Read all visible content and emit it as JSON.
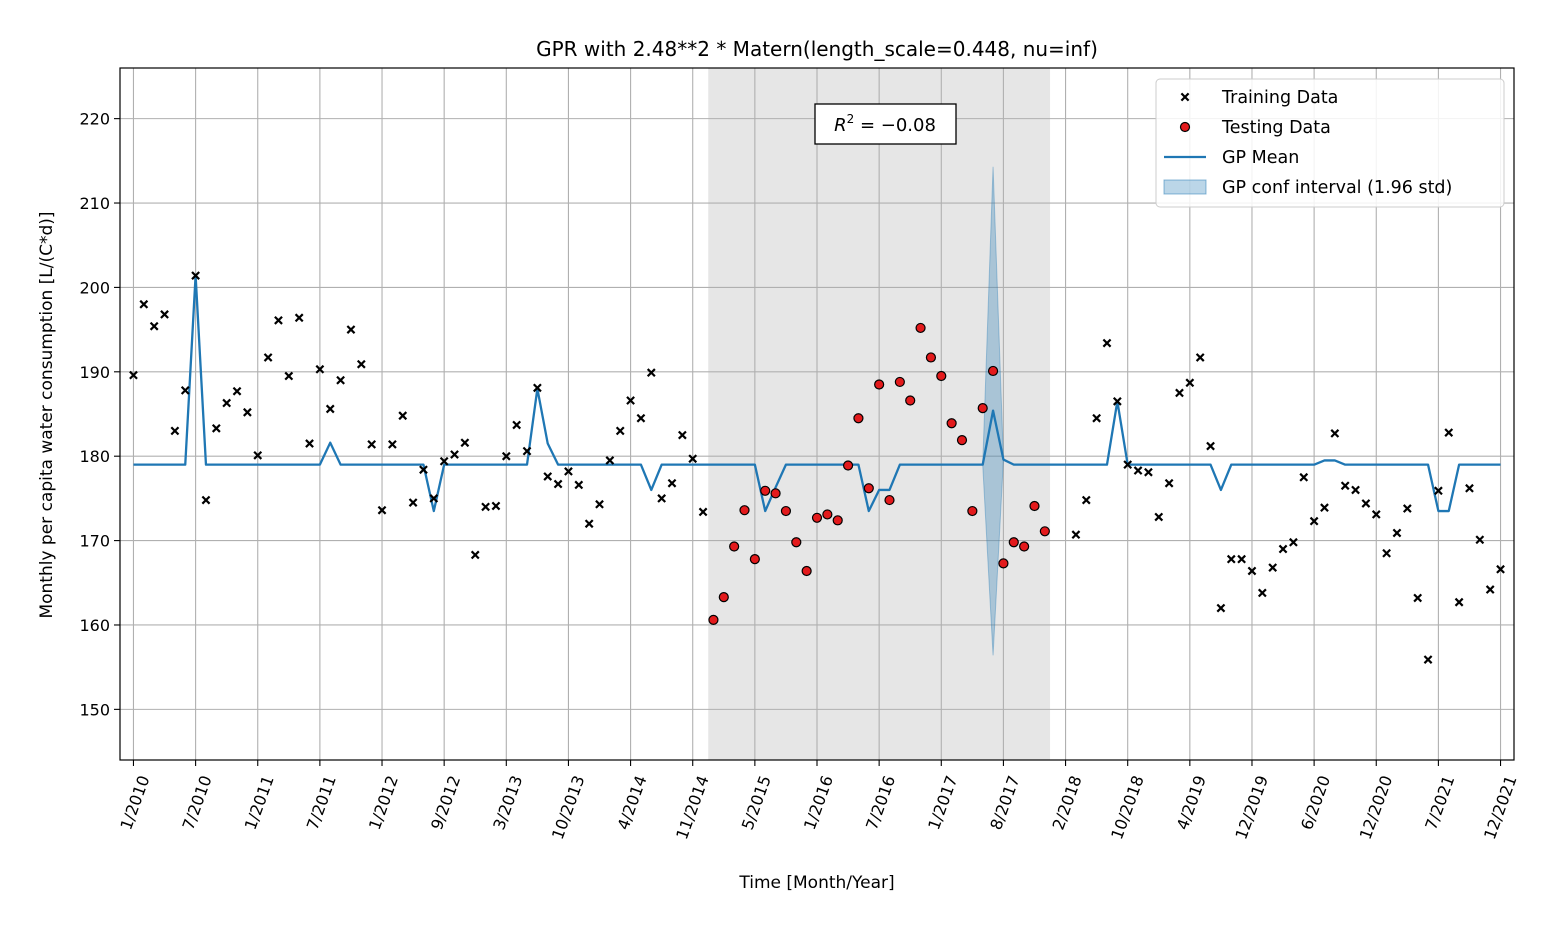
{
  "chart_data": {
    "type": "scatter",
    "title": "GPR with 2.48**2 * Matern(length_scale=0.448, nu=inf)",
    "xlabel": "Time [Month/Year]",
    "ylabel": "Monthly per capita water consumption [L/(C*d)]",
    "ylim": [
      144,
      226
    ],
    "xlim": [
      -1.3,
      133.3
    ],
    "grid": true,
    "legend_position": "top-right",
    "annotation": {
      "text_prefix": "R",
      "superscript": "2",
      "text_suffix": " = −0.08"
    },
    "x_ticks": [
      {
        "x": 0,
        "label": "1/2010"
      },
      {
        "x": 6,
        "label": "7/2010"
      },
      {
        "x": 12,
        "label": "1/2011"
      },
      {
        "x": 18,
        "label": "7/2011"
      },
      {
        "x": 24,
        "label": "1/2012"
      },
      {
        "x": 30,
        "label": "9/2012"
      },
      {
        "x": 36,
        "label": "3/2013"
      },
      {
        "x": 42,
        "label": "10/2013"
      },
      {
        "x": 48,
        "label": "4/2014"
      },
      {
        "x": 54,
        "label": "11/2014"
      },
      {
        "x": 60,
        "label": "5/2015"
      },
      {
        "x": 66,
        "label": "1/2016"
      },
      {
        "x": 72,
        "label": "7/2016"
      },
      {
        "x": 78,
        "label": "1/2017"
      },
      {
        "x": 84,
        "label": "8/2017"
      },
      {
        "x": 90,
        "label": "2/2018"
      },
      {
        "x": 96,
        "label": "10/2018"
      },
      {
        "x": 102,
        "label": "4/2019"
      },
      {
        "x": 108,
        "label": "12/2019"
      },
      {
        "x": 114,
        "label": "6/2020"
      },
      {
        "x": 120,
        "label": "12/2020"
      },
      {
        "x": 126,
        "label": "7/2021"
      },
      {
        "x": 132,
        "label": "12/2021"
      }
    ],
    "y_ticks": [
      150,
      160,
      170,
      180,
      190,
      200,
      210,
      220
    ],
    "test_region": [
      56,
      88
    ],
    "series": [
      {
        "name": "Training Data",
        "kind": "scatter",
        "marker": "x",
        "color": "#000000",
        "points": [
          [
            0,
            189.6
          ],
          [
            1,
            198
          ],
          [
            2,
            195.4
          ],
          [
            3,
            196.8
          ],
          [
            4,
            183
          ],
          [
            5,
            187.8
          ],
          [
            6,
            201.4
          ],
          [
            7,
            174.8
          ],
          [
            8,
            183.3
          ],
          [
            9,
            186.3
          ],
          [
            10,
            187.7
          ],
          [
            11,
            185.2
          ],
          [
            12,
            180.1
          ],
          [
            13,
            191.7
          ],
          [
            14,
            196.1
          ],
          [
            15,
            189.5
          ],
          [
            16,
            196.4
          ],
          [
            17,
            181.5
          ],
          [
            18,
            190.3
          ],
          [
            19,
            185.6
          ],
          [
            20,
            189
          ],
          [
            21,
            195
          ],
          [
            22,
            190.9
          ],
          [
            23,
            181.4
          ],
          [
            24,
            173.6
          ],
          [
            25,
            181.4
          ],
          [
            26,
            184.8
          ],
          [
            27,
            174.5
          ],
          [
            28,
            178.4
          ],
          [
            29,
            175
          ],
          [
            30,
            179.4
          ],
          [
            31,
            180.2
          ],
          [
            32,
            181.6
          ],
          [
            33,
            168.3
          ],
          [
            34,
            174
          ],
          [
            35,
            174.1
          ],
          [
            36,
            180
          ],
          [
            37,
            183.7
          ],
          [
            38,
            180.6
          ],
          [
            39,
            188.1
          ],
          [
            40,
            177.6
          ],
          [
            41,
            176.7
          ],
          [
            42,
            178.2
          ],
          [
            43,
            176.6
          ],
          [
            44,
            172
          ],
          [
            45,
            174.3
          ],
          [
            46,
            179.5
          ],
          [
            47,
            183
          ],
          [
            48,
            186.6
          ],
          [
            49,
            184.5
          ],
          [
            50,
            189.9
          ],
          [
            51,
            175
          ],
          [
            52,
            176.8
          ],
          [
            53,
            182.5
          ],
          [
            54,
            179.7
          ],
          [
            55,
            173.4
          ],
          [
            91,
            170.7
          ],
          [
            92,
            174.8
          ],
          [
            93,
            184.5
          ],
          [
            94,
            193.4
          ],
          [
            95,
            186.5
          ],
          [
            96,
            179
          ],
          [
            97,
            178.3
          ],
          [
            98,
            178.1
          ],
          [
            99,
            172.8
          ],
          [
            100,
            176.8
          ],
          [
            101,
            187.5
          ],
          [
            102,
            188.7
          ],
          [
            103,
            191.7
          ],
          [
            104,
            181.2
          ],
          [
            105,
            162
          ],
          [
            106,
            167.8
          ],
          [
            107,
            167.8
          ],
          [
            108,
            166.4
          ],
          [
            109,
            163.8
          ],
          [
            110,
            166.8
          ],
          [
            111,
            169
          ],
          [
            112,
            169.8
          ],
          [
            113,
            177.5
          ],
          [
            114,
            172.3
          ],
          [
            115,
            173.9
          ],
          [
            116,
            182.7
          ],
          [
            117,
            176.5
          ],
          [
            118,
            176
          ],
          [
            119,
            174.4
          ],
          [
            120,
            173.1
          ],
          [
            121,
            168.5
          ],
          [
            122,
            170.9
          ],
          [
            123,
            173.8
          ],
          [
            124,
            163.2
          ],
          [
            125,
            155.9
          ],
          [
            126,
            175.9
          ],
          [
            127,
            182.8
          ],
          [
            128,
            162.7
          ],
          [
            129,
            176.2
          ],
          [
            130,
            170.1
          ],
          [
            131,
            164.2
          ],
          [
            132,
            166.6
          ]
        ]
      },
      {
        "name": "Testing Data",
        "kind": "scatter",
        "marker": "o",
        "color": "#e31a1c",
        "points": [
          [
            56,
            160.6
          ],
          [
            57,
            163.3
          ],
          [
            58,
            169.3
          ],
          [
            59,
            173.6
          ],
          [
            60,
            167.8
          ],
          [
            61,
            175.9
          ],
          [
            62,
            175.6
          ],
          [
            63,
            173.5
          ],
          [
            64,
            169.8
          ],
          [
            65,
            166.4
          ],
          [
            66,
            172.7
          ],
          [
            67,
            173.1
          ],
          [
            68,
            172.4
          ],
          [
            69,
            178.9
          ],
          [
            70,
            184.5
          ],
          [
            71,
            176.2
          ],
          [
            72,
            188.5
          ],
          [
            73,
            174.8
          ],
          [
            74,
            188.8
          ],
          [
            75,
            186.6
          ],
          [
            76,
            195.2
          ],
          [
            77,
            191.7
          ],
          [
            78,
            189.5
          ],
          [
            79,
            183.9
          ],
          [
            80,
            181.9
          ],
          [
            81,
            173.5
          ],
          [
            82,
            185.7
          ],
          [
            83,
            190.1
          ],
          [
            84,
            167.3
          ],
          [
            85,
            169.8
          ],
          [
            86,
            169.3
          ],
          [
            87,
            174.1
          ],
          [
            88,
            171.1
          ]
        ]
      },
      {
        "name": "GP Mean",
        "kind": "line",
        "color": "#1f77b4",
        "points": [
          [
            0,
            179
          ],
          [
            5,
            179
          ],
          [
            6,
            201.4
          ],
          [
            7,
            179
          ],
          [
            18,
            179
          ],
          [
            19,
            181.6
          ],
          [
            20,
            179
          ],
          [
            28,
            179
          ],
          [
            29,
            173.5
          ],
          [
            30,
            179
          ],
          [
            38,
            179
          ],
          [
            39,
            188
          ],
          [
            40,
            181.5
          ],
          [
            41,
            179
          ],
          [
            49,
            179
          ],
          [
            50,
            176
          ],
          [
            51,
            179
          ],
          [
            60,
            179
          ],
          [
            61,
            173.5
          ],
          [
            62,
            176.3
          ],
          [
            63,
            179
          ],
          [
            70,
            179
          ],
          [
            71,
            173.5
          ],
          [
            72,
            176
          ],
          [
            73,
            176
          ],
          [
            74,
            179
          ],
          [
            82,
            179
          ],
          [
            83,
            185.4
          ],
          [
            84,
            179.6
          ],
          [
            85,
            179
          ],
          [
            94,
            179
          ],
          [
            95,
            186.5
          ],
          [
            96,
            179
          ],
          [
            103,
            179
          ],
          [
            104,
            179
          ],
          [
            105,
            176
          ],
          [
            106,
            179
          ],
          [
            114,
            179
          ],
          [
            115,
            179.5
          ],
          [
            116,
            179.5
          ],
          [
            117,
            179
          ],
          [
            125,
            179
          ],
          [
            126,
            173.5
          ],
          [
            127,
            173.5
          ],
          [
            128,
            179
          ],
          [
            132,
            179
          ]
        ]
      },
      {
        "name": "GP conf interval (1.96 std)",
        "kind": "band",
        "color": "#1f77b4",
        "upper": [
          [
            82,
            179
          ],
          [
            83,
            214.3
          ],
          [
            84,
            179.6
          ]
        ],
        "lower": [
          [
            82,
            179
          ],
          [
            83,
            156.4
          ],
          [
            84,
            179.6
          ]
        ]
      }
    ]
  },
  "colors": {
    "grid": "#b0b0b0",
    "shade": "#e6e6e6",
    "mean": "#1f77b4",
    "band_fill": "#1f77b4",
    "test_fill": "#e31a1c"
  }
}
